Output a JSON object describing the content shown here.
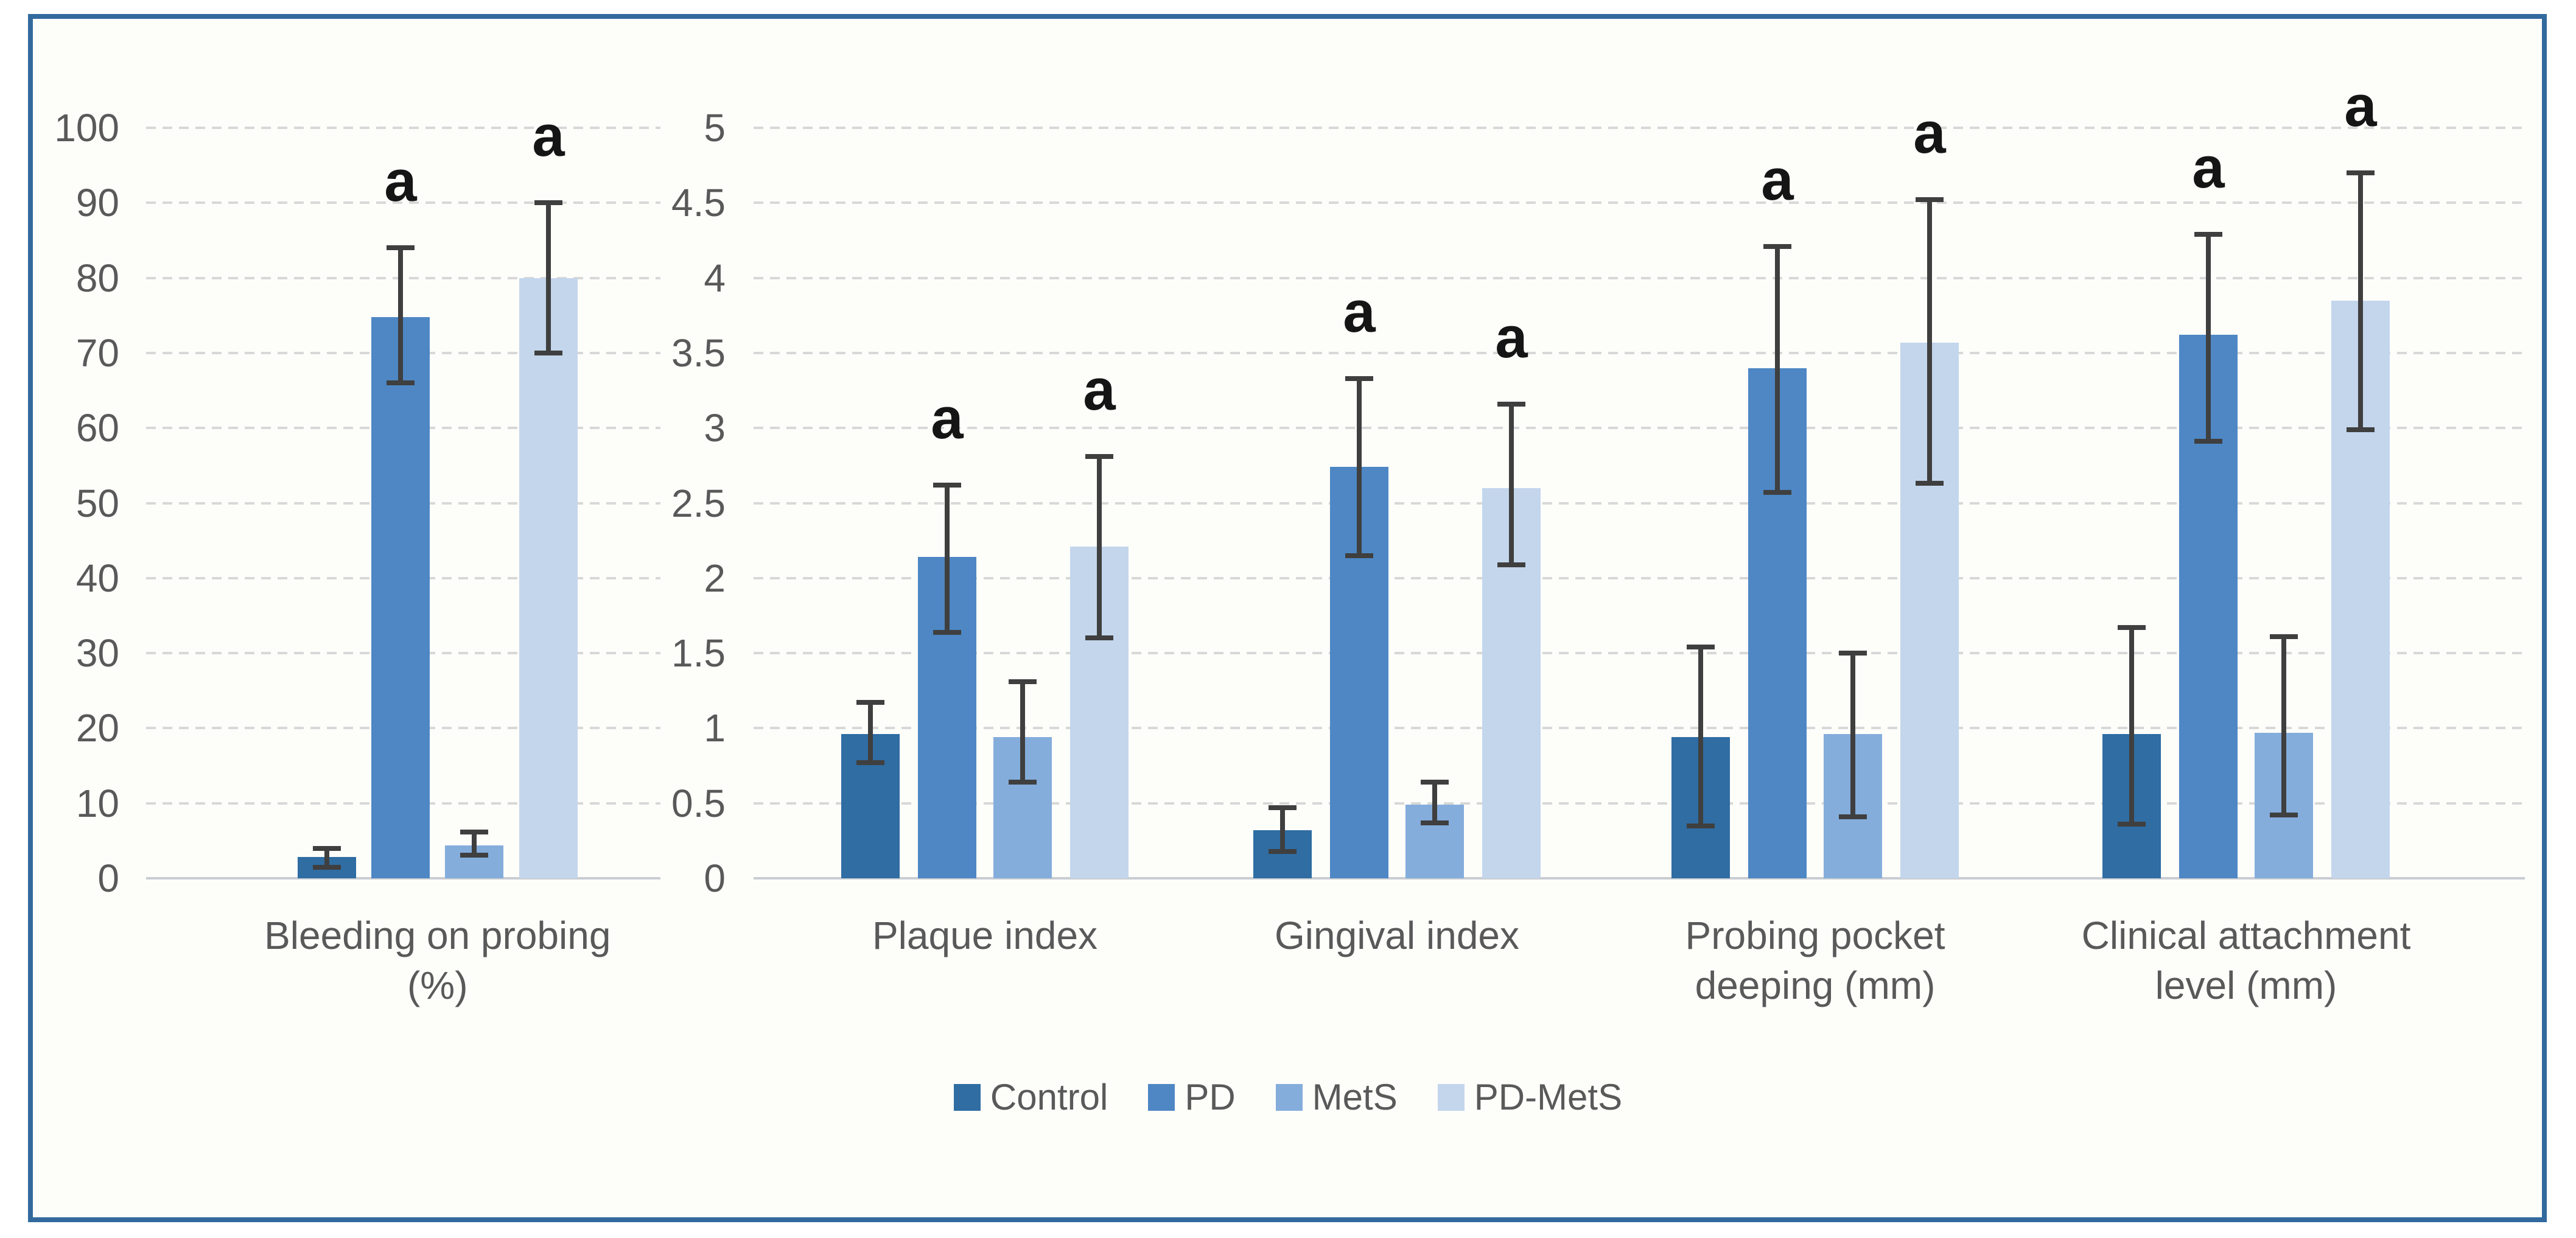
{
  "figure": {
    "border_color": "#336A9E",
    "background": "#FDFDFA",
    "gridline_color": "#D8D8D8",
    "baseline_color": "#C9CDD2",
    "error_bar_color": "#3F3F3F",
    "axis_text_color": "#595959",
    "sig_marker": "a"
  },
  "chart_data": [
    {
      "type": "bar",
      "title": "",
      "xlabel": "",
      "ylabel": "",
      "ylim": [
        0,
        100
      ],
      "axis": {
        "min": 0,
        "max": 100,
        "step": 10
      },
      "tick_labels": [
        "100",
        "90",
        "80",
        "70",
        "60",
        "50",
        "40",
        "30",
        "20",
        "10",
        "0"
      ],
      "grid": true,
      "legend_position": "bottom-center",
      "categories": [
        "Bleeding on probing (%)"
      ],
      "category_label_lines": [
        [
          "Bleeding on probing",
          "(%)"
        ]
      ],
      "series": [
        {
          "name": "Control",
          "values": [
            2.8
          ],
          "error_low": [
            1.5
          ],
          "error_high": [
            4.0
          ],
          "significant": [
            false
          ]
        },
        {
          "name": "PD",
          "values": [
            74.8
          ],
          "error_low": [
            66
          ],
          "error_high": [
            84
          ],
          "significant": [
            true
          ]
        },
        {
          "name": "MetS",
          "values": [
            4.4
          ],
          "error_low": [
            3.1
          ],
          "error_high": [
            6.2
          ],
          "significant": [
            false
          ]
        },
        {
          "name": "PD-MetS",
          "values": [
            80
          ],
          "error_low": [
            70
          ],
          "error_high": [
            90
          ],
          "significant": [
            true
          ]
        }
      ]
    },
    {
      "type": "bar",
      "title": "",
      "xlabel": "",
      "ylabel": "",
      "ylim": [
        0,
        5
      ],
      "axis": {
        "min": 0,
        "max": 5,
        "step": 0.5
      },
      "tick_labels": [
        "5",
        "4.5",
        "4",
        "3.5",
        "3",
        "2.5",
        "2",
        "1.5",
        "1",
        "0.5",
        "0"
      ],
      "grid": true,
      "legend_position": "bottom-center",
      "categories": [
        "Plaque index",
        "Gingival index",
        "Probing pocket deeping (mm)",
        "Clinical attachment level (mm)"
      ],
      "category_label_lines": [
        [
          "Plaque index"
        ],
        [
          "Gingival index"
        ],
        [
          "Probing pocket",
          "deeping (mm)"
        ],
        [
          "Clinical attachment",
          "level (mm)"
        ]
      ],
      "series": [
        {
          "name": "Control",
          "values": [
            0.96,
            0.32,
            0.94,
            0.96
          ],
          "error_low": [
            0.77,
            0.18,
            0.35,
            0.36
          ],
          "error_high": [
            1.17,
            0.47,
            1.54,
            1.67
          ],
          "significant": [
            false,
            false,
            false,
            false
          ]
        },
        {
          "name": "PD",
          "values": [
            2.14,
            2.74,
            3.4,
            3.62
          ],
          "error_low": [
            1.64,
            2.15,
            2.57,
            2.91
          ],
          "error_high": [
            2.62,
            3.33,
            4.21,
            4.29
          ],
          "significant": [
            true,
            true,
            true,
            true
          ]
        },
        {
          "name": "MetS",
          "values": [
            0.94,
            0.49,
            0.96,
            0.97
          ],
          "error_low": [
            0.64,
            0.37,
            0.41,
            0.42
          ],
          "error_high": [
            1.31,
            0.64,
            1.5,
            1.61
          ],
          "significant": [
            false,
            false,
            false,
            false
          ]
        },
        {
          "name": "PD-MetS",
          "values": [
            2.21,
            2.6,
            3.57,
            3.85
          ],
          "error_low": [
            1.6,
            2.09,
            2.63,
            2.99
          ],
          "error_high": [
            2.81,
            3.16,
            4.52,
            4.7
          ],
          "significant": [
            true,
            true,
            true,
            true
          ]
        }
      ]
    }
  ],
  "legend": {
    "items": [
      {
        "label": "Control",
        "color": "#2F6DA3"
      },
      {
        "label": "PD",
        "color": "#4E87C4"
      },
      {
        "label": "MetS",
        "color": "#84ADDC"
      },
      {
        "label": "PD-MetS",
        "color": "#C3D6EC"
      }
    ]
  }
}
